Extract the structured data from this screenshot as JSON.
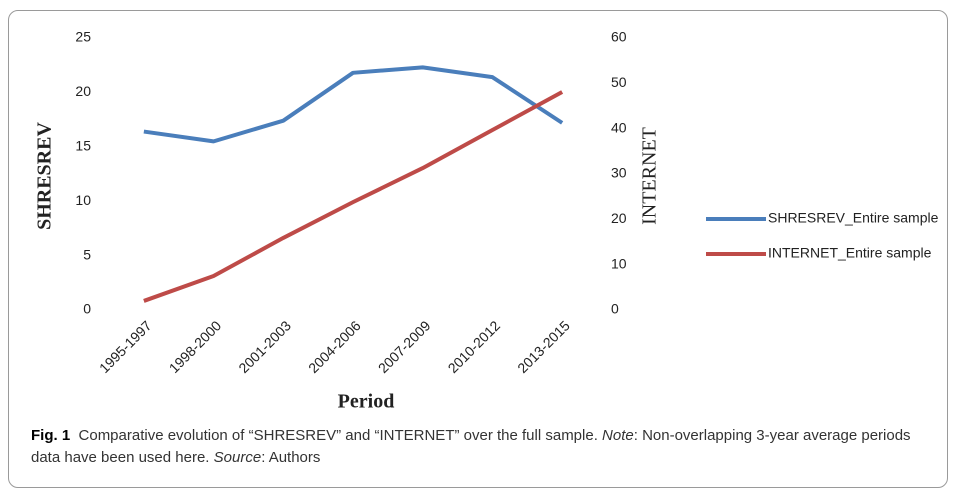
{
  "chart_data": {
    "type": "line",
    "categories": [
      "1995-1997",
      "1998-2000",
      "2001-2003",
      "2004-2006",
      "2007-2009",
      "2010-2012",
      "2013-2015"
    ],
    "series": [
      {
        "name": "SHRESREV_Entire sample",
        "color": "#4a7ebb",
        "values": [
          16.4,
          15.5,
          17.4,
          21.8,
          22.3,
          21.4,
          17.2
        ]
      },
      {
        "name": "INTERNET_Entire sample",
        "color": "#be4b48",
        "axis": "y2",
        "values": [
          2.0,
          7.5,
          15.9,
          23.8,
          31.3,
          39.7,
          48.1
        ]
      }
    ],
    "ylim": [
      0,
      25
    ],
    "yticks": [
      0,
      5,
      10,
      15,
      20,
      25
    ],
    "y2lim": [
      0,
      60
    ],
    "y2ticks": [
      0,
      10,
      20,
      30,
      40,
      50,
      60
    ],
    "ylabel": "SHRESREV",
    "y2label": "INTERNET",
    "xlabel": "Period",
    "legend": "right"
  },
  "caption": {
    "label": "Fig. 1",
    "text": "Comparative evolution of “SHRESREV” and “INTERNET” over the full sample.",
    "note_label": "Note",
    "note": ": Non-overlapping 3-year average periods data have been used here.",
    "source_label": "Source",
    "source": ": Authors"
  }
}
